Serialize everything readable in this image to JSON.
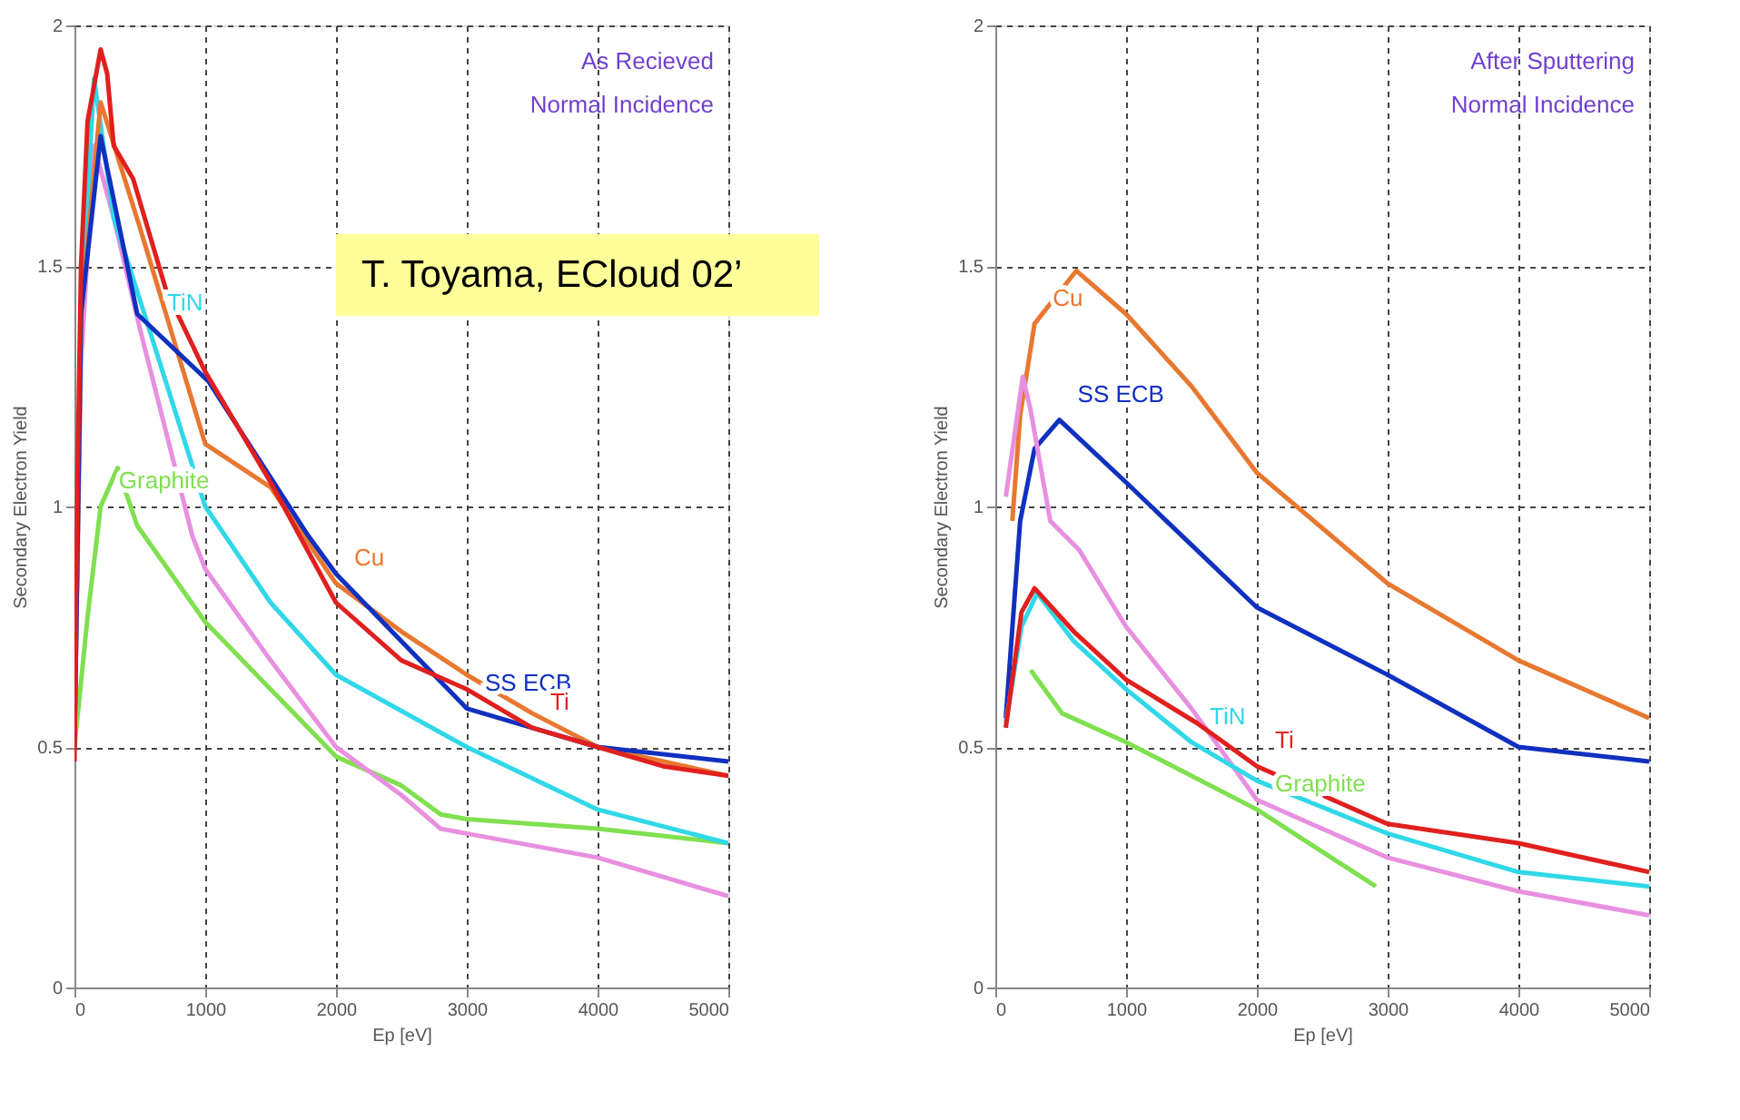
{
  "chart_data": [
    {
      "type": "line",
      "title": "T. Toyama, ECloud 02’",
      "xlabel": "Ep [eV]",
      "ylabel": "Secondary Electron Yield",
      "xlim": [
        0,
        5000
      ],
      "ylim": [
        0,
        2
      ],
      "xticks": [
        0,
        1000,
        2000,
        3000,
        4000,
        5000
      ],
      "yticks": [
        0,
        0.5,
        1,
        1.5,
        2
      ],
      "grid": true,
      "line_style": "solid",
      "annotations": [
        "As Recieved",
        "Normal Incidence"
      ],
      "series": [
        {
          "name": "Graphite",
          "color": "#80e050",
          "x": [
            0,
            100,
            200,
            330,
            480,
            1000,
            1500,
            2000,
            2500,
            2800,
            3000,
            4000,
            5000
          ],
          "values": [
            0.5,
            0.77,
            1.0,
            1.08,
            0.96,
            0.76,
            0.62,
            0.48,
            0.42,
            0.36,
            0.35,
            0.33,
            0.3
          ]
        },
        {
          "color": "#e890e0",
          "x": [
            0,
            50,
            150,
            300,
            500,
            900,
            1000,
            1500,
            2000,
            2500,
            2800,
            3000,
            4000,
            5000
          ],
          "values": [
            0.5,
            1.3,
            1.75,
            1.6,
            1.37,
            0.94,
            0.87,
            0.68,
            0.5,
            0.4,
            0.33,
            0.32,
            0.27,
            0.19
          ]
        },
        {
          "name": "TiN",
          "color": "#30d8e8",
          "x": [
            0,
            50,
            150,
            300,
            570,
            1000,
            1500,
            2000,
            3000,
            4000,
            5000
          ],
          "values": [
            0.5,
            1.4,
            1.89,
            1.6,
            1.37,
            1.0,
            0.8,
            0.65,
            0.5,
            0.37,
            0.3
          ]
        },
        {
          "name": "Cu",
          "color": "#e87830",
          "x": [
            0,
            50,
            200,
            500,
            1000,
            1500,
            2000,
            2500,
            3000,
            3500,
            4000,
            5000
          ],
          "values": [
            0.5,
            1.4,
            1.84,
            1.58,
            1.13,
            1.04,
            0.84,
            0.74,
            0.65,
            0.57,
            0.5,
            0.44
          ]
        },
        {
          "name": "SS ECB",
          "color": "#1030c0",
          "x": [
            0,
            50,
            200,
            480,
            1025,
            1785,
            2000,
            2500,
            3000,
            3500,
            4000,
            5000
          ],
          "values": [
            0.5,
            1.4,
            1.77,
            1.4,
            1.26,
            0.94,
            0.86,
            0.72,
            0.58,
            0.54,
            0.5,
            0.47
          ]
        },
        {
          "name": "Ti",
          "color": "#e0201e",
          "x": [
            0,
            20,
            50,
            100,
            200,
            250,
            300,
            450,
            700,
            1000,
            1500,
            2000,
            2500,
            3000,
            3500,
            4000,
            4500,
            5000
          ],
          "values": [
            0.47,
            1.0,
            1.5,
            1.8,
            1.95,
            1.9,
            1.75,
            1.68,
            1.45,
            1.28,
            1.05,
            0.8,
            0.68,
            0.62,
            0.54,
            0.5,
            0.46,
            0.44
          ]
        }
      ]
    },
    {
      "type": "line",
      "xlabel": "Ep [eV]",
      "ylabel": "Secondary Electron Yield",
      "xlim": [
        0,
        5000
      ],
      "ylim": [
        0,
        2
      ],
      "xticks": [
        0,
        1000,
        2000,
        3000,
        4000,
        5000
      ],
      "yticks": [
        0,
        0.5,
        1,
        1.5,
        2
      ],
      "grid": true,
      "line_style": "solid",
      "annotations": [
        "After Sputtering",
        "Normal Incidence"
      ],
      "series": [
        {
          "name": "Cu",
          "color": "#e87830",
          "x": [
            130,
            190,
            300,
            620,
            1000,
            1500,
            2000,
            3000,
            4000,
            5000
          ],
          "values": [
            0.97,
            1.19,
            1.38,
            1.49,
            1.4,
            1.25,
            1.07,
            0.84,
            0.68,
            0.56
          ]
        },
        {
          "name": "SS ECB",
          "color": "#1030c0",
          "x": [
            80,
            190,
            300,
            490,
            1000,
            1500,
            2000,
            3000,
            4000,
            5000
          ],
          "values": [
            0.56,
            0.97,
            1.12,
            1.18,
            1.05,
            0.92,
            0.79,
            0.65,
            0.5,
            0.47
          ]
        },
        {
          "color": "#e890e0",
          "x": [
            80,
            210,
            270,
            420,
            640,
            1000,
            1500,
            2000,
            3000,
            4000,
            5000
          ],
          "values": [
            1.02,
            1.27,
            1.2,
            0.97,
            0.91,
            0.75,
            0.58,
            0.39,
            0.27,
            0.2,
            0.15
          ]
        },
        {
          "name": "TiN",
          "color": "#30d8e8",
          "x": [
            80,
            200,
            320,
            600,
            1000,
            1500,
            2000,
            3000,
            4000,
            5000
          ],
          "values": [
            0.55,
            0.75,
            0.82,
            0.72,
            0.62,
            0.51,
            0.43,
            0.32,
            0.24,
            0.21
          ]
        },
        {
          "name": "Ti",
          "color": "#e0201e",
          "x": [
            80,
            200,
            300,
            600,
            1000,
            1540,
            2000,
            3000,
            4000,
            5000
          ],
          "values": [
            0.54,
            0.78,
            0.83,
            0.74,
            0.64,
            0.55,
            0.46,
            0.34,
            0.3,
            0.24
          ]
        },
        {
          "name": "Graphite",
          "color": "#80e050",
          "x": [
            270,
            510,
            1000,
            2000,
            2910
          ],
          "values": [
            0.66,
            0.57,
            0.51,
            0.37,
            0.21
          ]
        }
      ]
    }
  ]
}
